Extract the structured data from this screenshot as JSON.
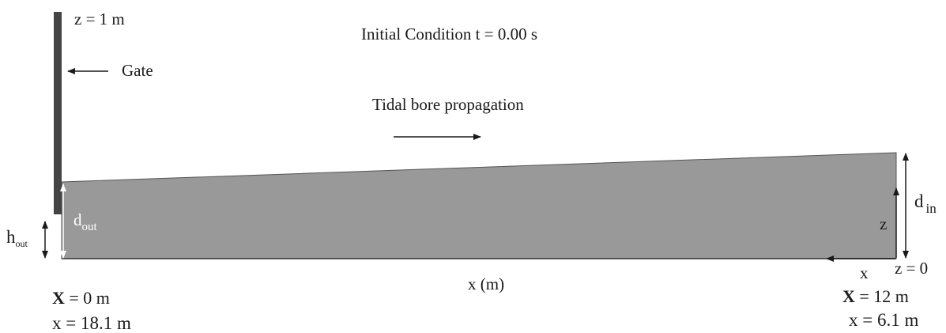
{
  "title": "Initial Condition t = 0.00 s",
  "gate_top_label": "z = 1 m",
  "gate_label": "Gate",
  "bore_label": "Tidal bore propagation",
  "h_out": {
    "main": "h",
    "sub": "out"
  },
  "d_out": {
    "main": "d",
    "sub": "out"
  },
  "d_in": {
    "main": "d",
    "sub": "in"
  },
  "z_label": "z",
  "x_arrow_label": "x",
  "z0_label": "z = 0",
  "x_axis_label": "x (m)",
  "left_X": {
    "bold": "X",
    "rest": " = 0 m"
  },
  "left_x": "x = 18.1 m",
  "right_X": {
    "bold": "X",
    "rest": " = 12 m"
  },
  "right_x": "x = 6.1 m",
  "colors": {
    "water": "#999999",
    "gate": "#444444",
    "ink": "#1a1a1a"
  }
}
